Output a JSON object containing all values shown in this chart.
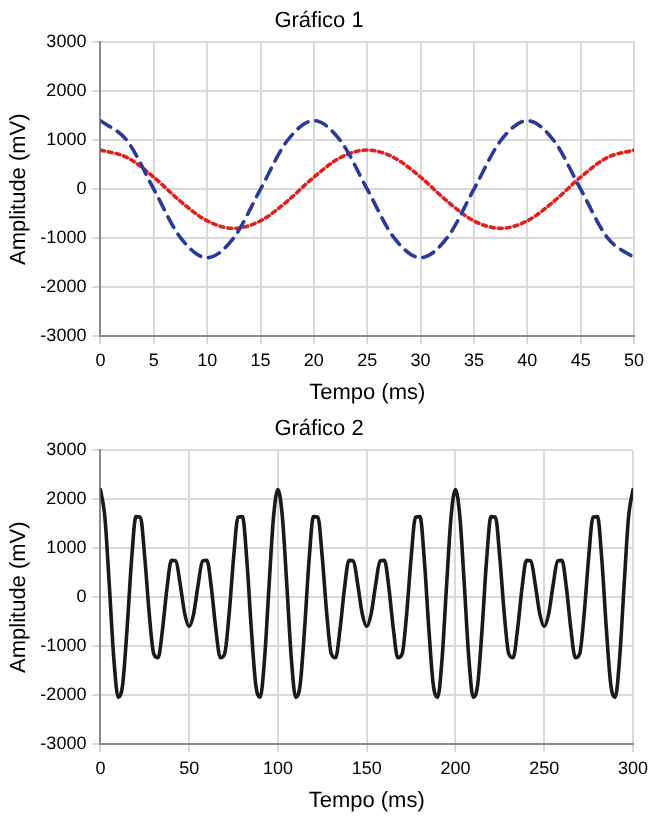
{
  "chart_data": [
    {
      "type": "line",
      "title": "Gráfico 1",
      "xlabel": "Tempo (ms)",
      "ylabel": "Amplitude (mV)",
      "xlim": [
        0,
        50
      ],
      "xticks": [
        0,
        5,
        10,
        15,
        20,
        25,
        30,
        35,
        40,
        45,
        50
      ],
      "ylim": [
        -3000,
        3000
      ],
      "yticks": [
        -3000,
        -2000,
        -1000,
        0,
        1000,
        2000,
        3000
      ],
      "grid": true,
      "marker": "none",
      "x": [
        0,
        2.5,
        5,
        7.5,
        10,
        12.5,
        15,
        17.5,
        20,
        22.5,
        25,
        27.5,
        30,
        32.5,
        35,
        37.5,
        40,
        42.5,
        45,
        47.5,
        50
      ],
      "series": [
        {
          "color": "#2b3a98",
          "line_style": "dashed",
          "values": [
            1400,
            990,
            0,
            -990,
            -1400,
            -990,
            0,
            990,
            1400,
            990,
            0,
            -990,
            -1400,
            -990,
            0,
            990,
            1400,
            990,
            0,
            -990,
            -1400
          ]
        },
        {
          "color": "#e0201b",
          "line_style": "dotted",
          "values": [
            800,
            647,
            247,
            -247,
            -647,
            -800,
            -647,
            -247,
            247,
            647,
            800,
            647,
            247,
            -247,
            -647,
            -800,
            -647,
            -247,
            247,
            647,
            800
          ]
        }
      ]
    },
    {
      "type": "line",
      "title": "Gráfico 2",
      "xlabel": "Tempo (ms)",
      "ylabel": "Amplitude (mV)",
      "xlim": [
        0,
        300
      ],
      "xticks": [
        0,
        50,
        100,
        150,
        200,
        250,
        300
      ],
      "ylim": [
        -3000,
        3000
      ],
      "yticks": [
        -3000,
        -2000,
        -1000,
        0,
        1000,
        2000,
        3000
      ],
      "grid": true,
      "marker": "none",
      "x": [
        0,
        2.5,
        5,
        7.5,
        10,
        12.5,
        15,
        17.5,
        20,
        22.5,
        25,
        27.5,
        30,
        32.5,
        35,
        37.5,
        40,
        42.5,
        45,
        47.5,
        50,
        52.5,
        55,
        57.5,
        60,
        62.5,
        65,
        67.5,
        70,
        72.5,
        75,
        77.5,
        80,
        82.5,
        85,
        87.5,
        90,
        92.5,
        95,
        97.5,
        100,
        102.5,
        105,
        107.5,
        110,
        112.5,
        115,
        117.5,
        120,
        122.5,
        125,
        127.5,
        130,
        132.5,
        135,
        137.5,
        140,
        142.5,
        145,
        147.5,
        150,
        152.5,
        155,
        157.5,
        160,
        162.5,
        165,
        167.5,
        170,
        172.5,
        175,
        177.5,
        180,
        182.5,
        185,
        187.5,
        190,
        192.5,
        195,
        197.5,
        200,
        202.5,
        205,
        207.5,
        210,
        212.5,
        215,
        217.5,
        220,
        222.5,
        225,
        227.5,
        230,
        232.5,
        235,
        237.5,
        240,
        242.5,
        245,
        247.5,
        250,
        252.5,
        255,
        257.5,
        260,
        262.5,
        265,
        267.5,
        270,
        272.5,
        275,
        277.5,
        280,
        282.5,
        285,
        287.5,
        290,
        292.5,
        295,
        297.5,
        300
      ],
      "series": [
        {
          "color": "#1a1a1a",
          "line_style": "solid",
          "values": [
            2200,
            1637,
            247,
            -1237,
            -2047,
            -1790,
            -647,
            743,
            1647,
            1637,
            800,
            -343,
            -1153,
            -1237,
            -647,
            190,
            753,
            743,
            247,
            -343,
            -600,
            -343,
            247,
            743,
            753,
            190,
            -647,
            -1237,
            -1153,
            -343,
            800,
            1637,
            1647,
            743,
            -647,
            -1790,
            -2047,
            -1237,
            247,
            1637,
            2200,
            1637,
            247,
            -1237,
            -2047,
            -1790,
            -647,
            743,
            1647,
            1637,
            800,
            -343,
            -1153,
            -1237,
            -647,
            190,
            753,
            743,
            247,
            -343,
            -600,
            -343,
            247,
            743,
            753,
            190,
            -647,
            -1237,
            -1153,
            -343,
            800,
            1637,
            1647,
            743,
            -647,
            -1790,
            -2047,
            -1237,
            247,
            1637,
            2200,
            1637,
            247,
            -1237,
            -2047,
            -1790,
            -647,
            743,
            1647,
            1637,
            800,
            -343,
            -1153,
            -1237,
            -647,
            190,
            753,
            743,
            247,
            -343,
            -600,
            -343,
            247,
            743,
            753,
            190,
            -647,
            -1237,
            -1153,
            -343,
            800,
            1637,
            1647,
            743,
            -647,
            -1790,
            -2047,
            -1237,
            247,
            1637,
            2200
          ]
        }
      ]
    }
  ]
}
